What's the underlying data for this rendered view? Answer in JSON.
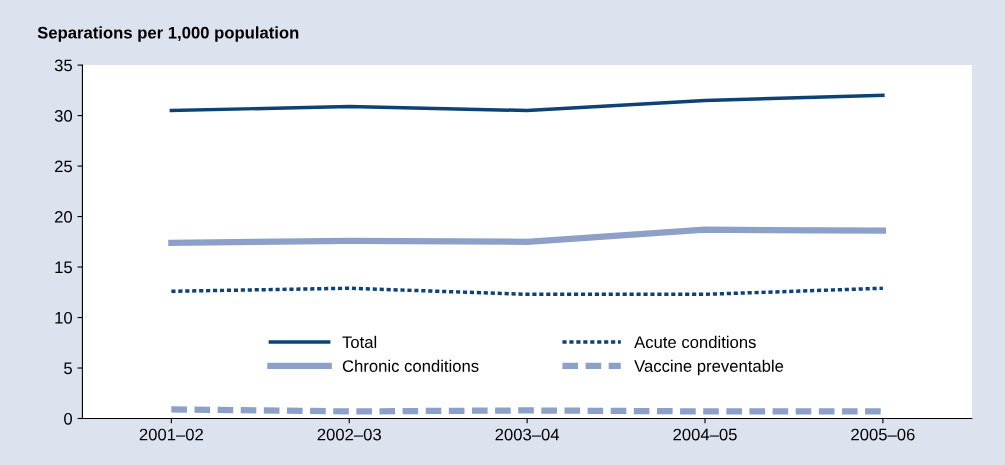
{
  "chart_data": {
    "type": "line",
    "ylabel": "Separations per 1,000 population",
    "categories": [
      "2001–02",
      "2002–03",
      "2003–04",
      "2004–05",
      "2005–06"
    ],
    "series": [
      {
        "name": "Total",
        "color": "#0e4275",
        "values": [
          30.5,
          30.9,
          30.5,
          31.5,
          32.0
        ],
        "line_style": "solid"
      },
      {
        "name": "Acute conditions",
        "color": "#0e4275",
        "values": [
          12.6,
          12.9,
          12.3,
          12.3,
          12.9
        ],
        "line_style": "dotted"
      },
      {
        "name": "Chronic conditions",
        "color": "#8da0c7",
        "values": [
          17.4,
          17.6,
          17.5,
          18.7,
          18.6
        ],
        "line_style": "solid"
      },
      {
        "name": "Vaccine preventable",
        "color": "#8da0c7",
        "values": [
          0.9,
          0.7,
          0.8,
          0.7,
          0.7
        ],
        "line_style": "dashed"
      }
    ],
    "ylim": [
      0,
      35
    ],
    "yticks": [
      0,
      5,
      10,
      15,
      20,
      25,
      30,
      35
    ],
    "grid": false,
    "legend": "bottom",
    "marker": "none"
  }
}
